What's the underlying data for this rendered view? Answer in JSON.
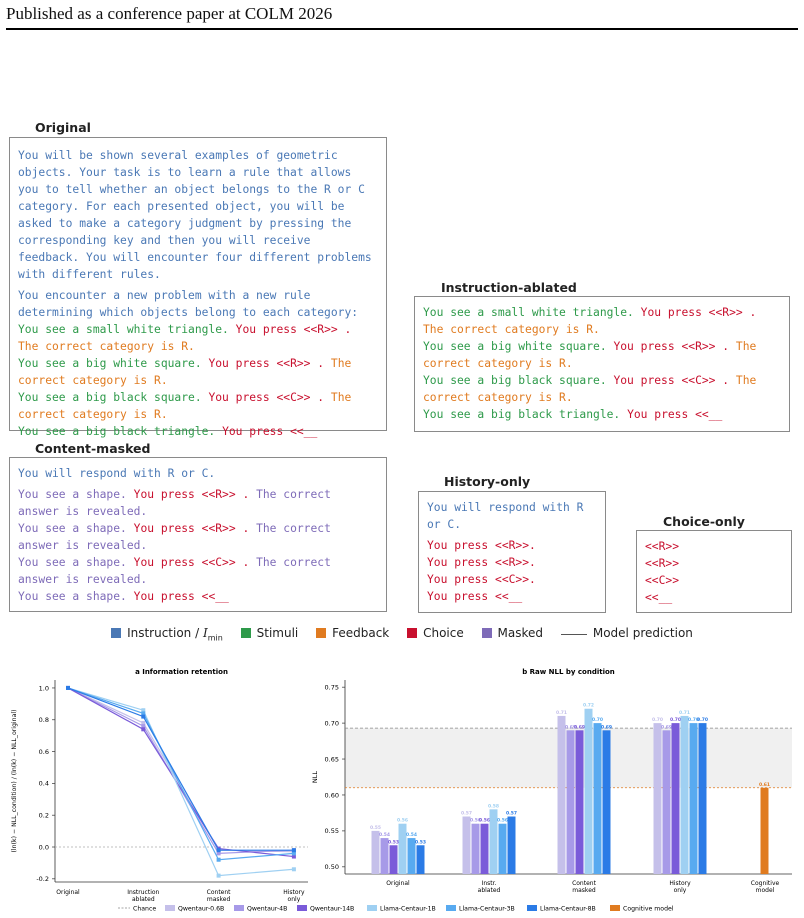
{
  "header": {
    "running_title": "Published as a conference paper at COLM 2026"
  },
  "boxes": {
    "original": {
      "title": "Original",
      "instruction": "You will be shown several examples of geometric objects. Your task is to learn a rule that allows you to tell whether an object belongs to the R or C category. For each presented object, you will be asked to make a category judgment by pressing the corresponding key and then you will receive feedback. You will encounter four different problems with different rules.",
      "intro": "You encounter a new problem with a new rule determining which objects belong to each category:",
      "t1_stim": "You see a small white triangle.",
      "t1_choice": "You press <<R>> .",
      "t1_fb": "The correct category is R.",
      "t2_stim": "You see a big white square.",
      "t2_choice": "You press <<R>> .",
      "t2_fb": "The correct category is R.",
      "t3_stim": "You see a big black square.",
      "t3_choice": "You press <<C>> .",
      "t3_fb": "The correct category is R.",
      "t4_stim": "You see a big black triangle.",
      "t4_choice": "You press <<__"
    },
    "ablated": {
      "title": "Instruction-ablated",
      "t1_stim": "You see a small white triangle.",
      "t1_choice": "You press <<R>> .",
      "t1_fb": "The correct category is R.",
      "t2_stim": "You see a big white square.",
      "t2_choice": "You press <<R>> .",
      "t2_fb": "The correct category is R.",
      "t3_stim": "You see a big black square.",
      "t3_choice": "You press <<C>> .",
      "t3_fb": "The correct category is R.",
      "t4_stim": "You see a big black triangle.",
      "t4_choice": "You press <<__"
    },
    "masked": {
      "title": "Content-masked",
      "instruction": "You will respond with R or C.",
      "t1_stim": "You see a shape.",
      "t1_choice": "You press <<R>> .",
      "t1_fb": "The correct answer is revealed.",
      "t2_stim": "You see a shape.",
      "t2_choice": "You press <<R>> .",
      "t2_fb": "The correct answer is revealed.",
      "t3_stim": "You see a shape.",
      "t3_choice": "You press <<C>> .",
      "t3_fb": "The correct answer is revealed.",
      "t4_stim": "You see a shape.",
      "t4_choice": "You press <<__"
    },
    "history": {
      "title": "History-only",
      "instruction": "You will respond with R or C.",
      "lines": [
        "You press <<R>>.",
        "You press <<R>>.",
        "You press <<C>>.",
        "You press <<__"
      ]
    },
    "choice": {
      "title": "Choice-only",
      "lines": [
        "<<R>>",
        "<<R>>",
        "<<C>>",
        "<<__"
      ]
    }
  },
  "legend": {
    "items": [
      {
        "label": "Instruction / ",
        "sub": "I",
        "subsub": "min",
        "color": "#4a78b5"
      },
      {
        "label": "Stimuli",
        "color": "#2e9a4a"
      },
      {
        "label": "Feedback",
        "color": "#e07b20"
      },
      {
        "label": "Choice",
        "color": "#c8102e"
      },
      {
        "label": "Masked",
        "color": "#7e6bb8"
      }
    ],
    "line_label": "Model prediction"
  },
  "chart_data": [
    {
      "type": "line",
      "title": "a  Information retention",
      "ylabel": "(ln(k) − NLL_condition) / (ln(k) − NLL_original)",
      "categories": [
        "Original",
        "Instruction ablated",
        "Content masked",
        "History only"
      ],
      "ylim": [
        -0.22,
        1.05
      ],
      "yticks": [
        -0.2,
        0.0,
        0.2,
        0.4,
        0.6,
        0.8,
        1.0
      ],
      "chance": 0.0,
      "series": [
        {
          "name": "Qwentaur-0.6B",
          "color": "#c5c0ea",
          "values": [
            1.0,
            0.78,
            -0.02,
            -0.03
          ]
        },
        {
          "name": "Qwentaur-4B",
          "color": "#a79ae8",
          "values": [
            1.0,
            0.76,
            -0.04,
            -0.02
          ]
        },
        {
          "name": "Qwentaur-14B",
          "color": "#7a5bd9",
          "values": [
            1.0,
            0.74,
            -0.01,
            -0.06
          ]
        },
        {
          "name": "Llama-Centaur-1B",
          "color": "#9fd0f2",
          "values": [
            1.0,
            0.86,
            -0.18,
            -0.14
          ]
        },
        {
          "name": "Llama-Centaur-3B",
          "color": "#58aaf0",
          "values": [
            1.0,
            0.84,
            -0.08,
            -0.04
          ]
        },
        {
          "name": "Llama-Centaur-8B",
          "color": "#2b7be6",
          "values": [
            1.0,
            0.82,
            -0.02,
            -0.02
          ]
        }
      ]
    },
    {
      "type": "bar",
      "title": "b  Raw NLL by condition",
      "ylabel": "NLL",
      "categories": [
        "Original",
        "Instr.\nablated",
        "Content\nmasked",
        "History\nonly",
        "Cognitive\nmodel"
      ],
      "ylim": [
        0.49,
        0.76
      ],
      "yticks": [
        0.5,
        0.55,
        0.6,
        0.65,
        0.7,
        0.75
      ],
      "chance": 0.693,
      "cognitive_ref": 0.61,
      "series": [
        {
          "name": "Qwentaur-0.6B",
          "color": "#c5c0ea",
          "values": [
            0.55,
            0.57,
            0.71,
            0.7,
            null
          ],
          "labels": [
            "0.55",
            "0.57",
            "0.71",
            "0.70",
            ""
          ]
        },
        {
          "name": "Qwentaur-4B",
          "color": "#a79ae8",
          "values": [
            0.54,
            0.56,
            0.69,
            0.69,
            null
          ],
          "labels": [
            "0.54",
            "0.56",
            "0.69",
            "0.69",
            ""
          ]
        },
        {
          "name": "Qwentaur-14B",
          "color": "#7a5bd9",
          "values": [
            0.53,
            0.56,
            0.69,
            0.7,
            null
          ],
          "labels": [
            "0.53",
            "0.56",
            "0.69",
            "0.70",
            ""
          ]
        },
        {
          "name": "Llama-Centaur-1B",
          "color": "#9fd0f2",
          "values": [
            0.56,
            0.58,
            0.72,
            0.71,
            null
          ],
          "labels": [
            "0.56",
            "0.58",
            "0.72",
            "0.71",
            ""
          ]
        },
        {
          "name": "Llama-Centaur-3B",
          "color": "#58aaf0",
          "values": [
            0.54,
            0.56,
            0.7,
            0.7,
            null
          ],
          "labels": [
            "0.54",
            "0.56",
            "0.70",
            "0.70",
            ""
          ]
        },
        {
          "name": "Llama-Centaur-8B",
          "color": "#2b7be6",
          "values": [
            0.53,
            0.57,
            0.69,
            0.7,
            null
          ],
          "labels": [
            "0.53",
            "0.57",
            "0.69",
            "0.70",
            ""
          ]
        },
        {
          "name": "Cognitive model",
          "color": "#e07b20",
          "values": [
            null,
            null,
            null,
            null,
            0.61
          ],
          "labels": [
            "",
            "",
            "",
            "",
            "0.61"
          ]
        }
      ]
    }
  ],
  "bottom_legend": [
    "Chance",
    "Qwentaur-0.6B",
    "Qwentaur-4B",
    "Qwentaur-14B",
    "Llama-Centaur-1B",
    "Llama-Centaur-3B",
    "Llama-Centaur-8B",
    "Cognitive model"
  ]
}
